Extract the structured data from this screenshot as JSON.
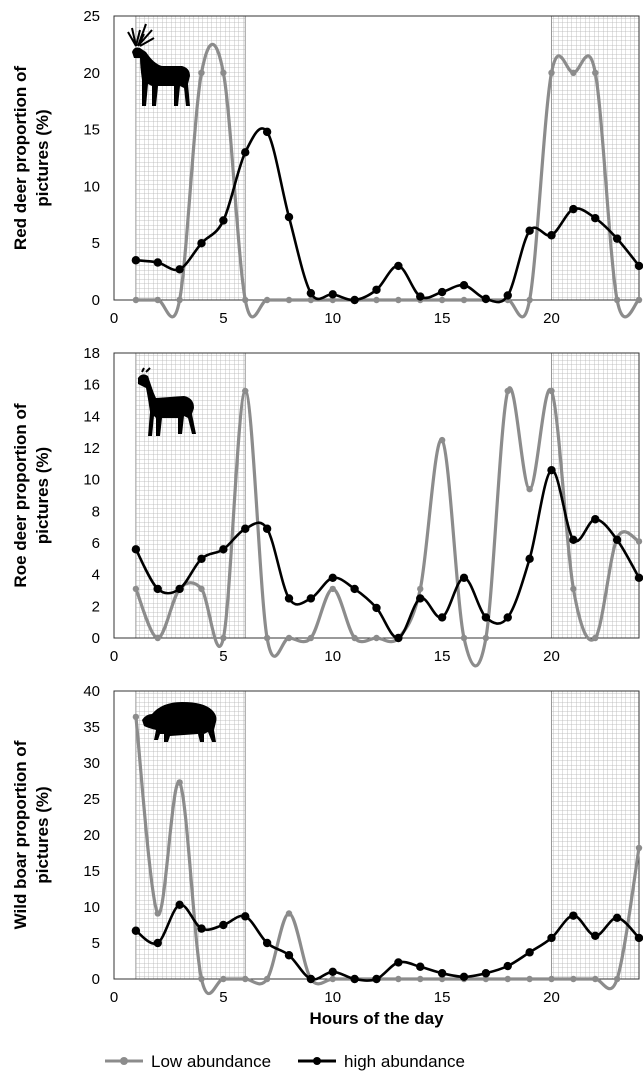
{
  "chart_data": [
    {
      "type": "line",
      "ylabel": [
        "Red deer proportion of",
        "pictures (%)"
      ],
      "xlim": [
        0,
        24
      ],
      "ylim": [
        0,
        25
      ],
      "yticks": [
        0,
        5,
        10,
        15,
        20,
        25
      ],
      "xticks": [
        0,
        5,
        10,
        15,
        20
      ],
      "silhouette": "red-deer-silhouette",
      "night_shading": [
        [
          1,
          6
        ],
        [
          20,
          24
        ]
      ],
      "series": [
        {
          "name": "Low abundance",
          "color": "#8c8c8c",
          "x": [
            1,
            2,
            3,
            4,
            5,
            6,
            7,
            8,
            9,
            10,
            11,
            12,
            13,
            14,
            15,
            16,
            17,
            18,
            19,
            20,
            21,
            22,
            23,
            24
          ],
          "y": [
            0,
            0,
            0,
            20,
            20,
            0,
            0,
            0,
            0,
            0,
            0,
            0,
            0,
            0,
            0,
            0,
            0,
            0,
            0,
            20,
            20,
            20,
            0,
            0
          ]
        },
        {
          "name": "high abundance",
          "color": "#000000",
          "x": [
            1,
            2,
            3,
            4,
            5,
            6,
            7,
            8,
            9,
            10,
            11,
            12,
            13,
            14,
            15,
            16,
            17,
            18,
            19,
            20,
            21,
            22,
            23,
            24
          ],
          "y": [
            3.5,
            3.3,
            2.7,
            5,
            7,
            13,
            14.8,
            7.3,
            0.6,
            0.5,
            0,
            0.9,
            3,
            0.3,
            0.7,
            1.3,
            0.1,
            0.4,
            6.1,
            5.7,
            8,
            7.2,
            5.4,
            3
          ]
        }
      ]
    },
    {
      "type": "line",
      "ylabel": [
        "Roe deer proportion of",
        "pictures (%)"
      ],
      "xlim": [
        0,
        24
      ],
      "ylim": [
        0,
        18
      ],
      "yticks": [
        0,
        2,
        4,
        6,
        8,
        10,
        12,
        14,
        16,
        18
      ],
      "xticks": [
        0,
        5,
        10,
        15,
        20
      ],
      "silhouette": "roe-deer-silhouette",
      "night_shading": [
        [
          1,
          6
        ],
        [
          20,
          24
        ]
      ],
      "series": [
        {
          "name": "Low abundance",
          "color": "#8c8c8c",
          "x": [
            1,
            2,
            3,
            4,
            5,
            6,
            7,
            8,
            9,
            10,
            11,
            12,
            13,
            14,
            15,
            16,
            17,
            18,
            19,
            20,
            21,
            22,
            23,
            24
          ],
          "y": [
            3.1,
            0,
            3.1,
            3.1,
            0,
            15.6,
            0,
            0,
            0,
            3.1,
            0,
            0,
            0,
            3.1,
            12.5,
            0,
            0,
            15.6,
            9.4,
            15.6,
            3.1,
            0,
            6.3,
            6.1
          ]
        },
        {
          "name": "high abundance",
          "color": "#000000",
          "x": [
            1,
            2,
            3,
            4,
            5,
            6,
            7,
            8,
            9,
            10,
            11,
            12,
            13,
            14,
            15,
            16,
            17,
            18,
            19,
            20,
            21,
            22,
            23,
            24
          ],
          "y": [
            5.6,
            3.1,
            3.1,
            5,
            5.6,
            6.9,
            6.9,
            2.5,
            2.5,
            3.8,
            3.1,
            1.9,
            0,
            2.5,
            1.3,
            3.8,
            1.3,
            1.3,
            5,
            10.6,
            6.2,
            7.5,
            6.2,
            3.8
          ]
        }
      ]
    },
    {
      "type": "line",
      "ylabel": [
        "Wild boar proportion of",
        "pictures (%)"
      ],
      "xlabel": "Hours of the day",
      "xlim": [
        0,
        24
      ],
      "ylim": [
        0,
        40
      ],
      "yticks": [
        0,
        5,
        10,
        15,
        20,
        25,
        30,
        35,
        40
      ],
      "xticks": [
        0,
        5,
        10,
        15,
        20
      ],
      "silhouette": "wild-boar-silhouette",
      "night_shading": [
        [
          1,
          6
        ],
        [
          20,
          24
        ]
      ],
      "series": [
        {
          "name": "Low abundance",
          "color": "#8c8c8c",
          "x": [
            1,
            2,
            3,
            4,
            5,
            6,
            7,
            8,
            9,
            10,
            11,
            12,
            13,
            14,
            15,
            16,
            17,
            18,
            19,
            20,
            21,
            22,
            23,
            24
          ],
          "y": [
            36.4,
            9.1,
            27.3,
            0,
            0,
            0,
            0,
            9.1,
            0,
            0,
            0,
            0,
            0,
            0,
            0,
            0,
            0,
            0,
            0,
            0,
            0,
            0,
            0,
            18.2
          ]
        },
        {
          "name": "high abundance",
          "color": "#000000",
          "x": [
            1,
            2,
            3,
            4,
            5,
            6,
            7,
            8,
            9,
            10,
            11,
            12,
            13,
            14,
            15,
            16,
            17,
            18,
            19,
            20,
            21,
            22,
            23,
            24
          ],
          "y": [
            6.7,
            5,
            10.3,
            7,
            7.5,
            8.7,
            5,
            3.3,
            0,
            1,
            0,
            0,
            2.3,
            1.7,
            0.8,
            0.3,
            0.8,
            1.8,
            3.7,
            5.7,
            8.8,
            6,
            8.5,
            5.7
          ]
        }
      ]
    }
  ],
  "legend": {
    "placement": "bottom",
    "items": [
      {
        "label": "Low abundance",
        "color": "#8c8c8c"
      },
      {
        "label": "high abundance",
        "color": "#000000"
      }
    ]
  }
}
